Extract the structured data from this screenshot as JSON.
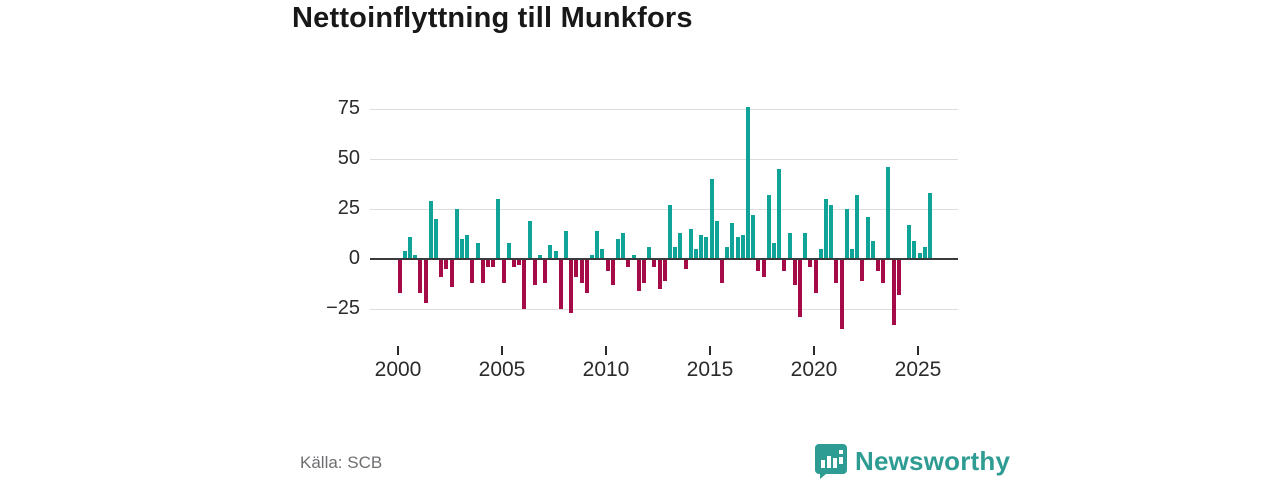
{
  "title": "Nettoinflyttning till Munkfors",
  "source": "Källa: SCB",
  "logo": {
    "text": "Newsworthy",
    "icon": "newsworthy-speech-bubble-bar-chart-icon"
  },
  "colors": {
    "positive_bar": "#10a397",
    "negative_bar": "#a50b46",
    "axis_line": "#3a3a3a",
    "gridline": "#dcdcdc",
    "logo_teal": "#2e9c92"
  },
  "chart_data": {
    "type": "bar",
    "title": "Nettoinflyttning till Munkfors",
    "xlabel": "",
    "ylabel": "",
    "frequency": "quarterly",
    "start_period": "2000-Q1",
    "end_period": "2025-Q3",
    "x_tick_years": [
      2000,
      2005,
      2010,
      2015,
      2020,
      2025
    ],
    "x_tick_labels": [
      "2000",
      "2005",
      "2010",
      "2015",
      "2020",
      "2025"
    ],
    "y_ticks": [
      75,
      50,
      25,
      0,
      -25
    ],
    "y_tick_labels": [
      "75",
      "50",
      "25",
      "0",
      "−25"
    ],
    "ylim": [
      -43,
      84
    ],
    "grid": "horizontal",
    "legend": "none",
    "series": [
      {
        "name": "Nettoinflyttning",
        "values": [
          -17,
          4,
          11,
          2,
          -17,
          -22,
          29,
          20,
          -9,
          -5,
          -14,
          25,
          10,
          12,
          -12,
          8,
          -12,
          -4,
          -4,
          30,
          -12,
          8,
          -4,
          -3,
          -25,
          19,
          -13,
          2,
          -12,
          7,
          4,
          -25,
          14,
          -27,
          -9,
          -12,
          -17,
          2,
          14,
          5,
          -6,
          -13,
          10,
          13,
          -4,
          2,
          -16,
          -12,
          6,
          -4,
          -15,
          -11,
          27,
          6,
          13,
          -5,
          15,
          5,
          12,
          11,
          40,
          19,
          -12,
          6,
          18,
          11,
          12,
          76,
          22,
          -6,
          -9,
          32,
          8,
          45,
          -6,
          13,
          -13,
          -29,
          13,
          -4,
          -17,
          5,
          30,
          27,
          -12,
          -35,
          25,
          5,
          32,
          -11,
          21,
          9,
          -6,
          -12,
          46,
          -33,
          -18,
          0,
          17,
          9,
          3,
          6,
          33
        ]
      }
    ]
  }
}
